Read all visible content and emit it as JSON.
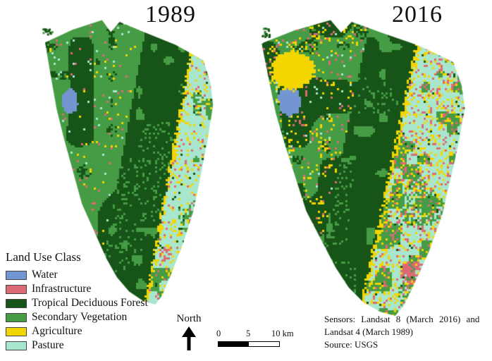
{
  "panels": [
    {
      "title": "1989",
      "year": "1989"
    },
    {
      "title": "2016",
      "year": "2016"
    }
  ],
  "legend": {
    "title": "Land Use Class",
    "items": [
      {
        "key": "water",
        "label": "Water",
        "color": "#7396d2"
      },
      {
        "key": "infrastructure",
        "label": "Infrastructure",
        "color": "#dc6a75"
      },
      {
        "key": "forest",
        "label": "Tropical Deciduous Forest",
        "color": "#175417"
      },
      {
        "key": "secondary",
        "label": "Secondary Vegetation",
        "color": "#459c45"
      },
      {
        "key": "agriculture",
        "label": "Agriculture",
        "color": "#f3d500"
      },
      {
        "key": "pasture",
        "label": "Pasture",
        "color": "#a8e7cd"
      }
    ]
  },
  "north_label": "North",
  "scale_bar": {
    "labels": [
      "0",
      "5",
      "10 km"
    ]
  },
  "source_lines": [
    "Sensors: Landsat 8 (March 2016) and",
    "Landsat 4 (March 1989)",
    "Source: USGS"
  ]
}
